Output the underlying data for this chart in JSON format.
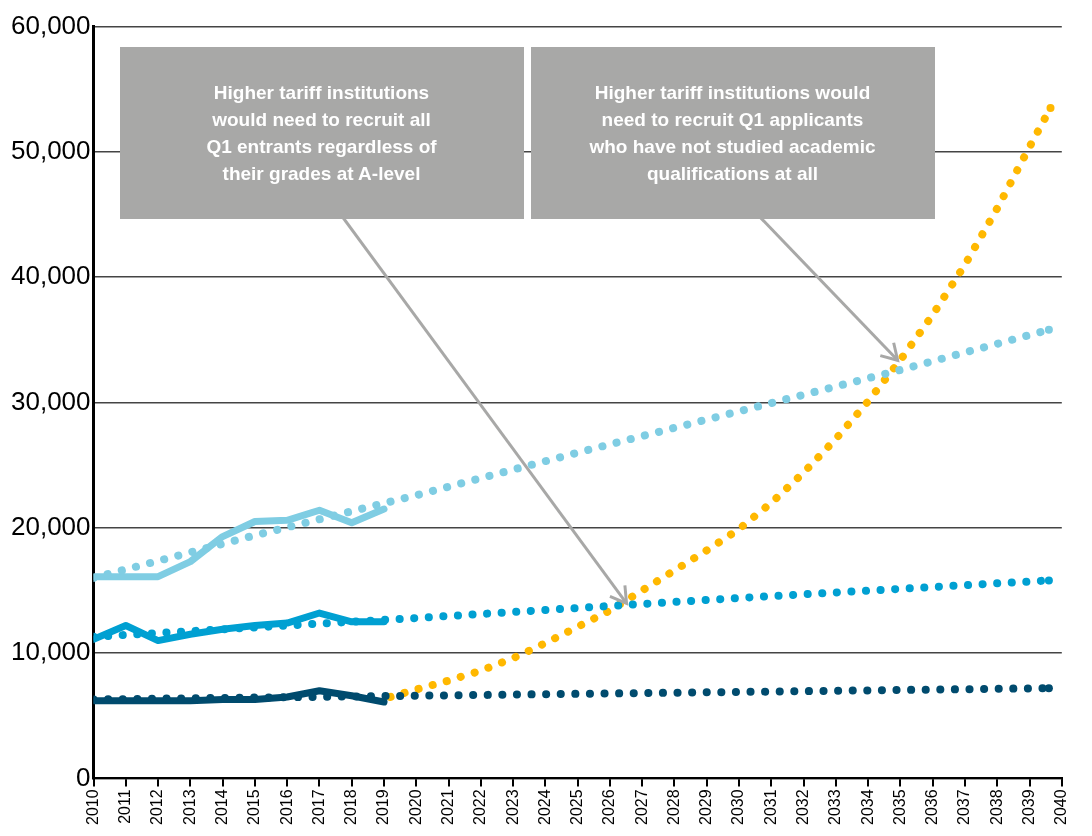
{
  "chart_data": {
    "type": "line",
    "xlim": [
      2010,
      2040
    ],
    "xticks": [
      2010,
      2011,
      2012,
      2013,
      2014,
      2015,
      2016,
      2017,
      2018,
      2019,
      2020,
      2021,
      2022,
      2023,
      2024,
      2025,
      2026,
      2027,
      2028,
      2029,
      2030,
      2031,
      2032,
      2033,
      2034,
      2035,
      2036,
      2037,
      2038,
      2039,
      2040
    ],
    "ylim": [
      0,
      60000
    ],
    "yticks": [
      {
        "value": 0,
        "label": "0"
      },
      {
        "value": 10000,
        "label": "10,000"
      },
      {
        "value": 20000,
        "label": "20,000"
      },
      {
        "value": 30000,
        "label": "30,000"
      },
      {
        "value": 40000,
        "label": "40,000"
      },
      {
        "value": 50000,
        "label": "50,000"
      },
      {
        "value": 60000,
        "label": "60,000"
      }
    ],
    "grid": "y",
    "legend": false,
    "marker": "none",
    "series": [
      {
        "color": "#7fcde3",
        "line_style": "dotted",
        "x": [
          2010,
          2015,
          2020,
          2025,
          2030,
          2035,
          2039.6
        ],
        "values": [
          16000,
          19400,
          22600,
          26000,
          29300,
          32600,
          35800
        ]
      },
      {
        "color": "#00a0d2",
        "line_style": "dotted",
        "x": [
          2010,
          2020,
          2030,
          2039.6
        ],
        "values": [
          11300,
          12800,
          14400,
          15800
        ]
      },
      {
        "color": "#004b6e",
        "line_style": "dotted",
        "x": [
          2010,
          2020,
          2030,
          2039.6
        ],
        "values": [
          6300,
          6600,
          6900,
          7200
        ]
      },
      {
        "color": "#ffb800",
        "line_style": "dotted",
        "x": [
          2019.2,
          2020,
          2021,
          2022,
          2023,
          2024,
          2025,
          2026,
          2027,
          2028,
          2029,
          2030,
          2031,
          2032,
          2033,
          2034,
          2035,
          2036,
          2037,
          2038,
          2039,
          2039.65
        ],
        "values": [
          6500,
          7100,
          7800,
          8600,
          9600,
          10800,
          12100,
          13400,
          15000,
          16600,
          18200,
          19900,
          22000,
          24400,
          27100,
          30100,
          33400,
          37000,
          41000,
          45500,
          50400,
          53500
        ]
      },
      {
        "color": "#7fcde3",
        "line_style": "solid",
        "x": [
          2010,
          2011,
          2012,
          2013,
          2014,
          2015,
          2016,
          2017,
          2018,
          2019
        ],
        "values": [
          16100,
          16100,
          16100,
          17300,
          19300,
          20500,
          20600,
          21400,
          20400,
          21500
        ]
      },
      {
        "color": "#00a0d2",
        "line_style": "solid",
        "x": [
          2010,
          2011,
          2012,
          2013,
          2014,
          2015,
          2016,
          2017,
          2018,
          2019
        ],
        "values": [
          11100,
          12200,
          11000,
          11500,
          11900,
          12200,
          12400,
          13200,
          12500,
          12500
        ]
      },
      {
        "color": "#004b6e",
        "line_style": "solid",
        "x": [
          2010,
          2011,
          2012,
          2013,
          2014,
          2015,
          2016,
          2017,
          2018,
          2019
        ],
        "values": [
          6200,
          6200,
          6200,
          6200,
          6300,
          6300,
          6500,
          7000,
          6600,
          6100
        ]
      }
    ],
    "annotations": [
      {
        "text": "Higher tariff institutions\nwould need to recruit all\nQ1 entrants regardless of\ntheir grades at A-level",
        "x": 2026.5,
        "y": 14000
      },
      {
        "text": "Higher tariff institutions would\nneed to recruit Q1 applicants\nwho have not studied academic\nqualifications at all",
        "x": 2034.9,
        "y": 33400
      }
    ]
  }
}
